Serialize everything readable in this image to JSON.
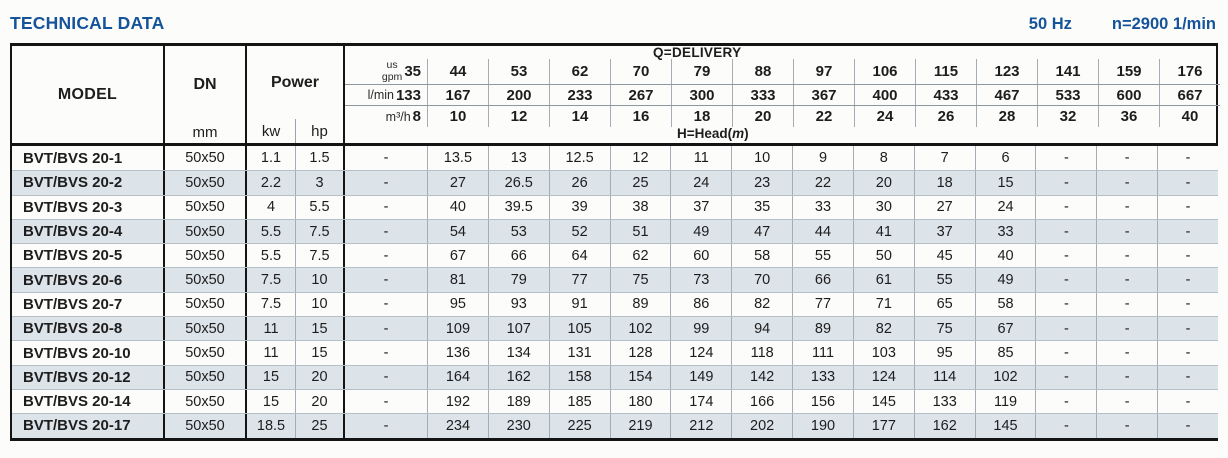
{
  "page": {
    "title": "TECHNICAL DATA",
    "frequency": "50 Hz",
    "speed": "n=2900 1/min"
  },
  "table": {
    "header": {
      "model_label": "MODEL",
      "dn_label": "DN",
      "dn_unit": "mm",
      "power_label": "Power",
      "kw_label": "kw",
      "hp_label": "hp",
      "delivery_label": "Q=DELIVERY",
      "head_parts": [
        "H=Head(",
        "m",
        ")"
      ],
      "units": {
        "gpm": {
          "label_top": "us",
          "label_bottom": "gpm",
          "values": [
            "35",
            "44",
            "53",
            "62",
            "70",
            "79",
            "88",
            "97",
            "106",
            "115",
            "123",
            "141",
            "159",
            "176"
          ]
        },
        "lmin": {
          "label": "l/min",
          "values": [
            "133",
            "167",
            "200",
            "233",
            "267",
            "300",
            "333",
            "367",
            "400",
            "433",
            "467",
            "533",
            "600",
            "667"
          ]
        },
        "m3h": {
          "label": "m³/h",
          "values": [
            "8",
            "10",
            "12",
            "14",
            "16",
            "18",
            "20",
            "22",
            "24",
            "26",
            "28",
            "32",
            "36",
            "40"
          ]
        }
      }
    },
    "rows": [
      {
        "model": "BVT/BVS 20-1",
        "dn": "50x50",
        "kw": "1.1",
        "hp": "1.5",
        "heads": [
          "-",
          "13.5",
          "13",
          "12.5",
          "12",
          "11",
          "10",
          "9",
          "8",
          "7",
          "6",
          "-",
          "-",
          "-"
        ]
      },
      {
        "model": "BVT/BVS 20-2",
        "dn": "50x50",
        "kw": "2.2",
        "hp": "3",
        "heads": [
          "-",
          "27",
          "26.5",
          "26",
          "25",
          "24",
          "23",
          "22",
          "20",
          "18",
          "15",
          "-",
          "-",
          "-"
        ]
      },
      {
        "model": "BVT/BVS 20-3",
        "dn": "50x50",
        "kw": "4",
        "hp": "5.5",
        "heads": [
          "-",
          "40",
          "39.5",
          "39",
          "38",
          "37",
          "35",
          "33",
          "30",
          "27",
          "24",
          "-",
          "-",
          "-"
        ]
      },
      {
        "model": "BVT/BVS 20-4",
        "dn": "50x50",
        "kw": "5.5",
        "hp": "7.5",
        "heads": [
          "-",
          "54",
          "53",
          "52",
          "51",
          "49",
          "47",
          "44",
          "41",
          "37",
          "33",
          "-",
          "-",
          "-"
        ]
      },
      {
        "model": "BVT/BVS 20-5",
        "dn": "50x50",
        "kw": "5.5",
        "hp": "7.5",
        "heads": [
          "-",
          "67",
          "66",
          "64",
          "62",
          "60",
          "58",
          "55",
          "50",
          "45",
          "40",
          "-",
          "-",
          "-"
        ]
      },
      {
        "model": "BVT/BVS 20-6",
        "dn": "50x50",
        "kw": "7.5",
        "hp": "10",
        "heads": [
          "-",
          "81",
          "79",
          "77",
          "75",
          "73",
          "70",
          "66",
          "61",
          "55",
          "49",
          "-",
          "-",
          "-"
        ]
      },
      {
        "model": "BVT/BVS 20-7",
        "dn": "50x50",
        "kw": "7.5",
        "hp": "10",
        "heads": [
          "-",
          "95",
          "93",
          "91",
          "89",
          "86",
          "82",
          "77",
          "71",
          "65",
          "58",
          "-",
          "-",
          "-"
        ]
      },
      {
        "model": "BVT/BVS 20-8",
        "dn": "50x50",
        "kw": "11",
        "hp": "15",
        "heads": [
          "-",
          "109",
          "107",
          "105",
          "102",
          "99",
          "94",
          "89",
          "82",
          "75",
          "67",
          "-",
          "-",
          "-"
        ]
      },
      {
        "model": "BVT/BVS 20-10",
        "dn": "50x50",
        "kw": "11",
        "hp": "15",
        "heads": [
          "-",
          "136",
          "134",
          "131",
          "128",
          "124",
          "118",
          "111",
          "103",
          "95",
          "85",
          "-",
          "-",
          "-"
        ]
      },
      {
        "model": "BVT/BVS 20-12",
        "dn": "50x50",
        "kw": "15",
        "hp": "20",
        "heads": [
          "-",
          "164",
          "162",
          "158",
          "154",
          "149",
          "142",
          "133",
          "124",
          "114",
          "102",
          "-",
          "-",
          "-"
        ]
      },
      {
        "model": "BVT/BVS 20-14",
        "dn": "50x50",
        "kw": "15",
        "hp": "20",
        "heads": [
          "-",
          "192",
          "189",
          "185",
          "180",
          "174",
          "166",
          "156",
          "145",
          "133",
          "119",
          "-",
          "-",
          "-"
        ]
      },
      {
        "model": "BVT/BVS 20-17",
        "dn": "50x50",
        "kw": "18.5",
        "hp": "25",
        "heads": [
          "-",
          "234",
          "230",
          "225",
          "219",
          "212",
          "202",
          "190",
          "177",
          "162",
          "145",
          "-",
          "-",
          "-"
        ]
      }
    ]
  }
}
